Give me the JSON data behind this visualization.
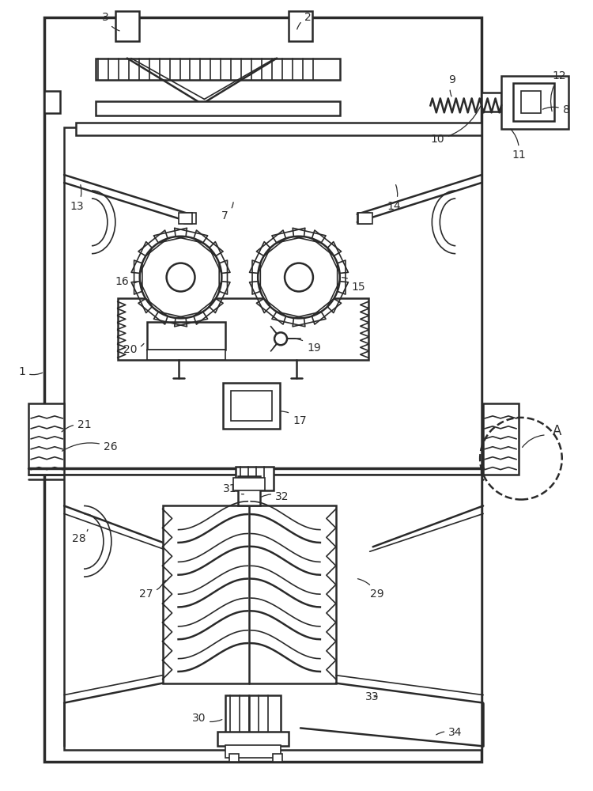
{
  "lc": "#2a2a2a",
  "lw1": 1.2,
  "lw2": 1.8,
  "lw3": 2.5,
  "bg": "white"
}
